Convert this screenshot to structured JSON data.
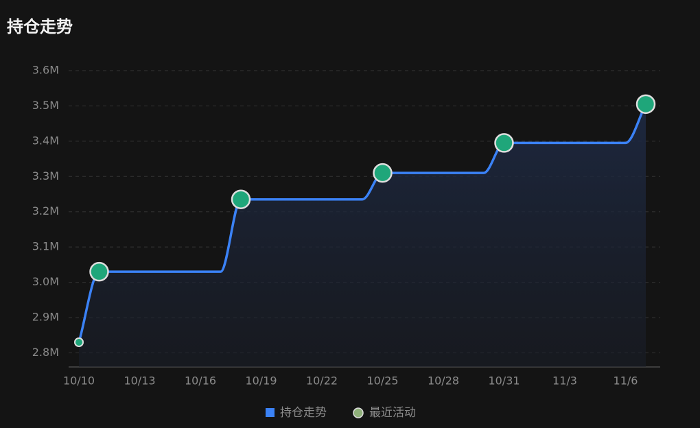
{
  "chart_data": {
    "type": "line",
    "title": "持仓走势",
    "categories": [
      "10/10",
      null,
      null,
      "10/13",
      null,
      null,
      "10/16",
      null,
      null,
      "10/19",
      null,
      null,
      "10/22",
      null,
      null,
      "10/25",
      null,
      null,
      "10/28",
      null,
      null,
      "10/31",
      null,
      null,
      "11/3",
      null,
      null,
      "11/6",
      null
    ],
    "series": [
      {
        "name": "持仓走势",
        "color": "#3b82f6",
        "values": [
          2830000,
          3030000,
          3030000,
          3030000,
          3030000,
          3030000,
          3030000,
          3030000,
          3235000,
          3235000,
          3235000,
          3235000,
          3235000,
          3235000,
          3235000,
          3310000,
          3310000,
          3310000,
          3310000,
          3310000,
          3310000,
          3395000,
          3395000,
          3395000,
          3395000,
          3395000,
          3395000,
          3395000,
          3505000
        ]
      },
      {
        "name": "最近活动",
        "color": "#1fa67a",
        "values": [
          null,
          3030000,
          null,
          null,
          null,
          null,
          null,
          null,
          3235000,
          null,
          null,
          null,
          null,
          null,
          null,
          3310000,
          null,
          null,
          null,
          null,
          null,
          3395000,
          null,
          null,
          null,
          null,
          null,
          null,
          3505000
        ]
      }
    ],
    "ylim": [
      2760000,
      3600000
    ],
    "yticks": [
      {
        "value": 2800000,
        "label": "2.8M"
      },
      {
        "value": 2900000,
        "label": "2.9M"
      },
      {
        "value": 3000000,
        "label": "3.0M"
      },
      {
        "value": 3100000,
        "label": "3.1M"
      },
      {
        "value": 3200000,
        "label": "3.2M"
      },
      {
        "value": 3300000,
        "label": "3.3M"
      },
      {
        "value": 3400000,
        "label": "3.4M"
      },
      {
        "value": 3500000,
        "label": "3.5M"
      },
      {
        "value": 3600000,
        "label": "3.6M"
      }
    ],
    "grid": true
  }
}
